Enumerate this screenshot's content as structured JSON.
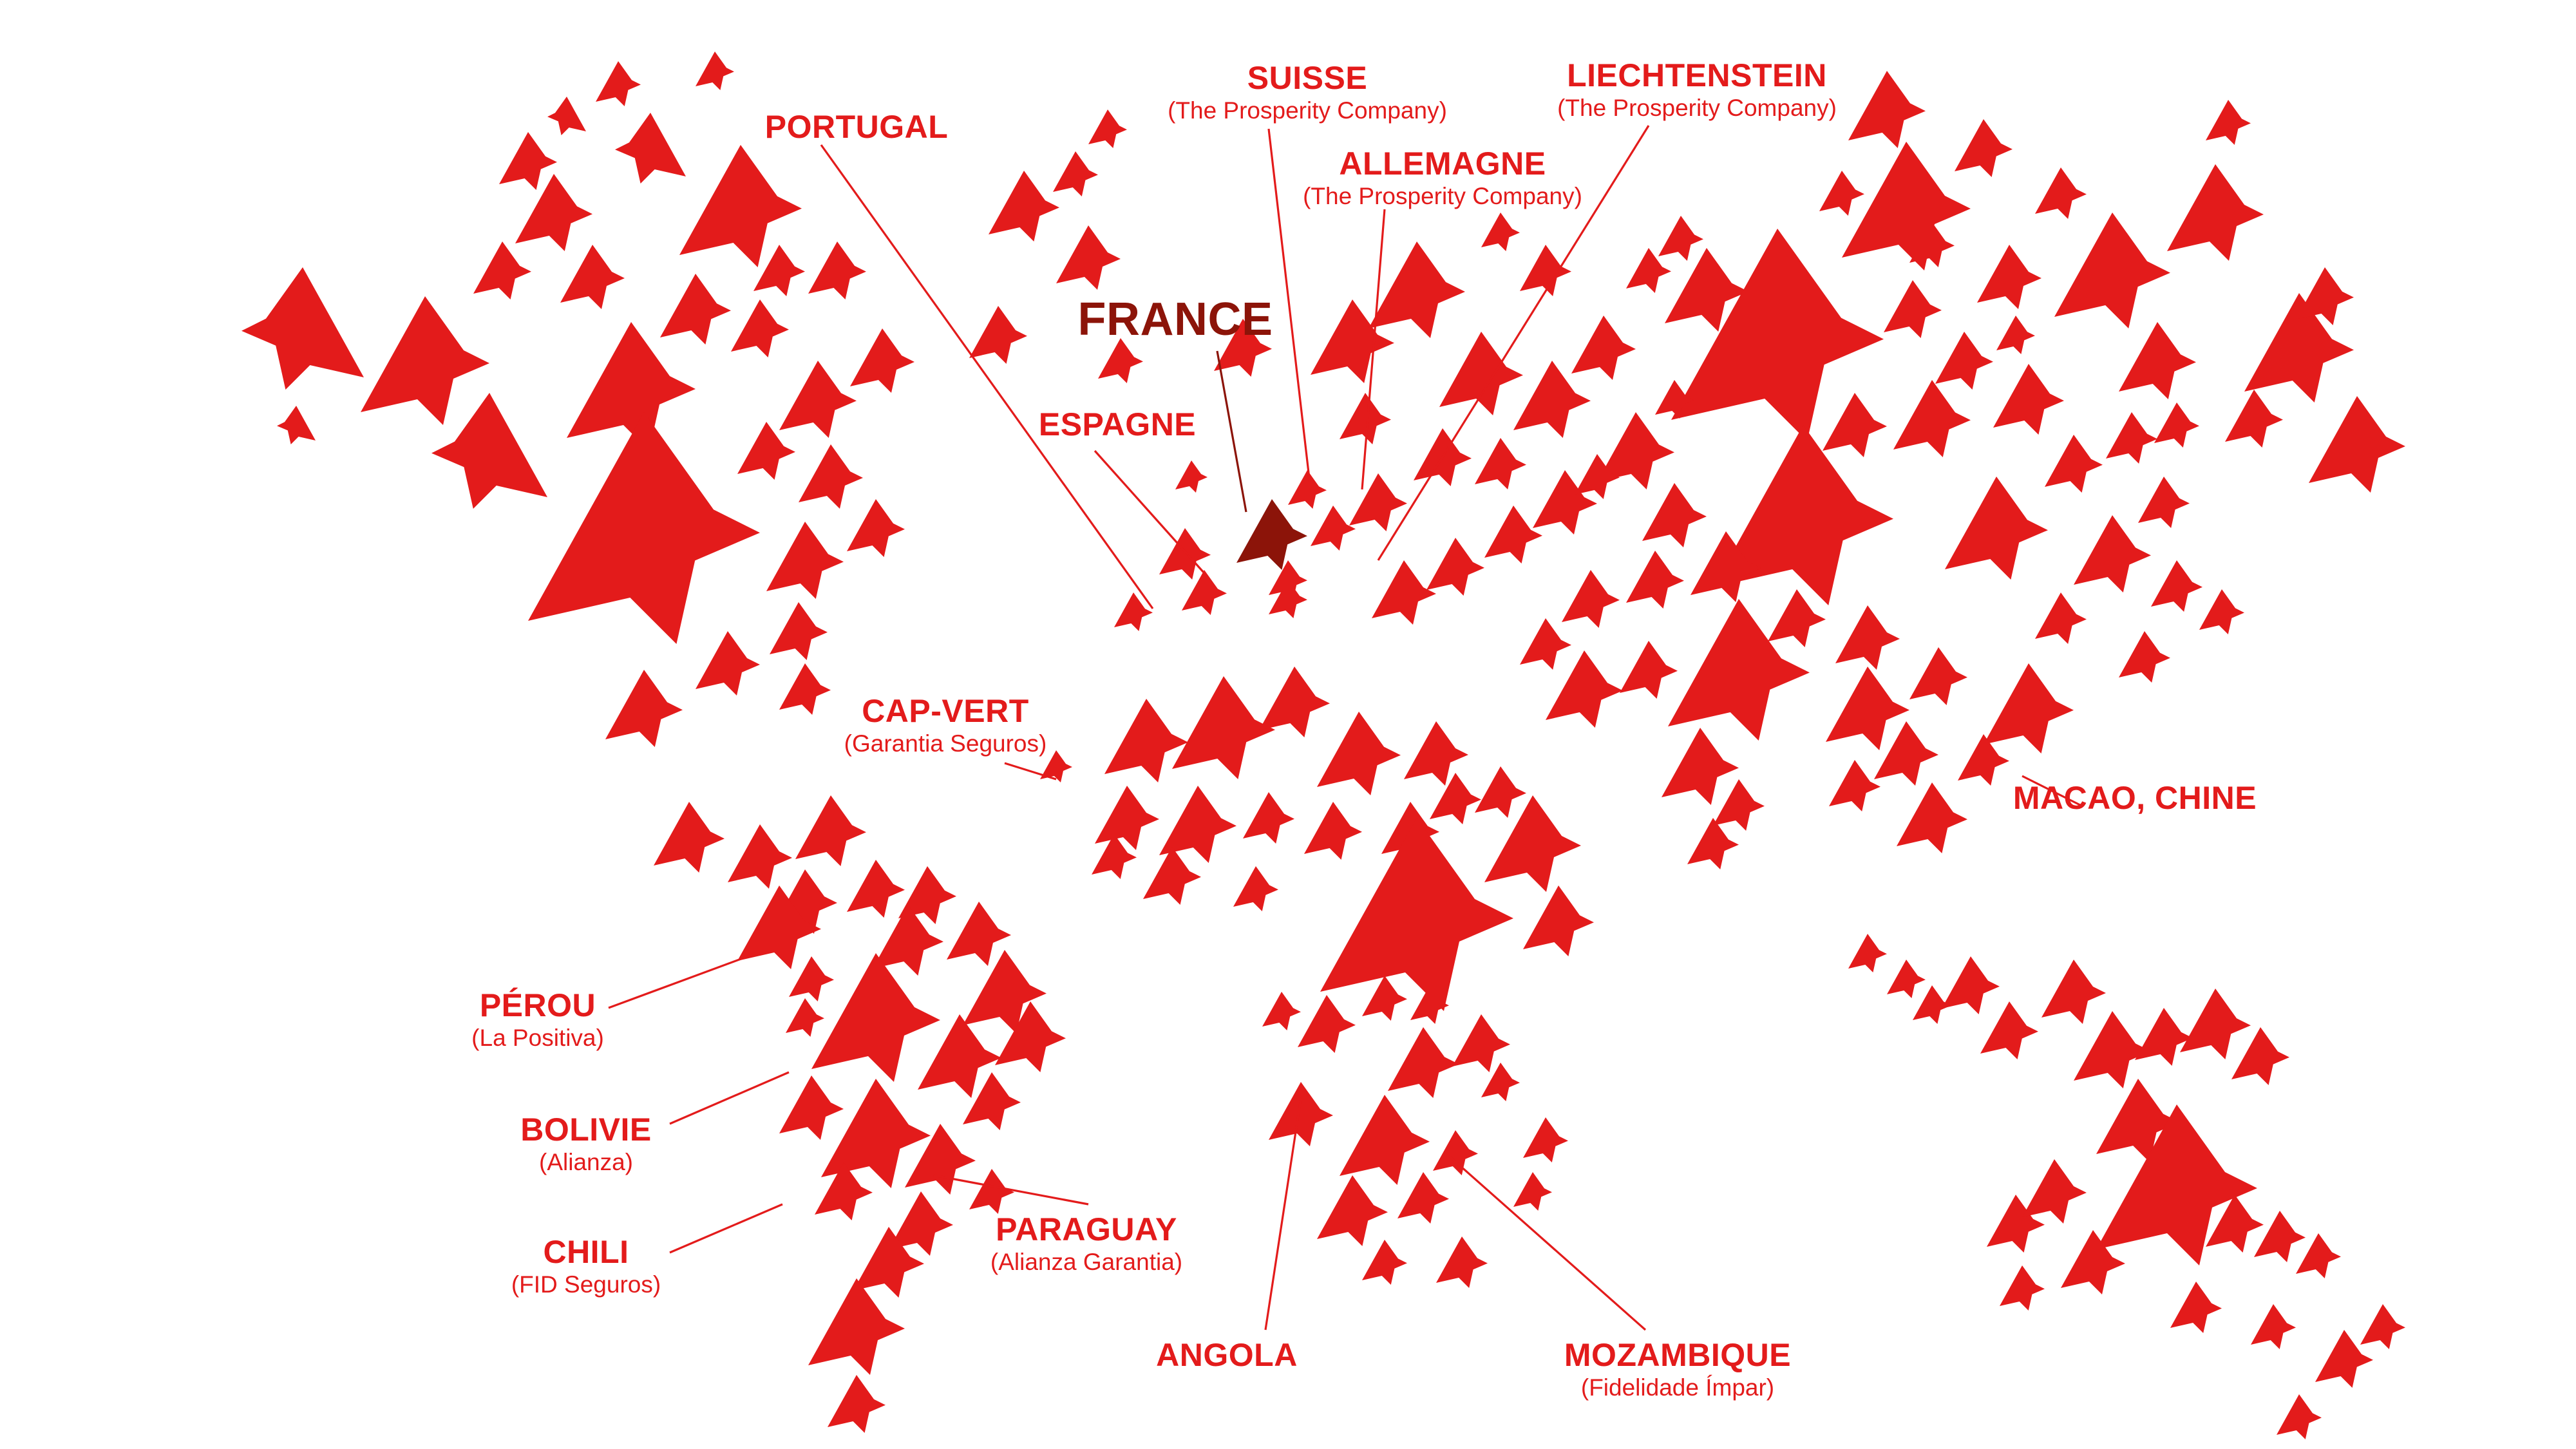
{
  "colors": {
    "accent": "#e31b1b",
    "home": "#8c1409",
    "background": "#ffffff"
  },
  "shape_icon": "origami-dog-head",
  "countries": {
    "portugal": {
      "name": "PORTUGAL",
      "partner": ""
    },
    "suisse": {
      "name": "SUISSE",
      "partner": "(The Prosperity Company)"
    },
    "liechtenstein": {
      "name": "LIECHTENSTEIN",
      "partner": "(The Prosperity Company)"
    },
    "allemagne": {
      "name": "ALLEMAGNE",
      "partner": "(The Prosperity Company)"
    },
    "france": {
      "name": "FRANCE",
      "partner": ""
    },
    "espagne": {
      "name": "ESPAGNE",
      "partner": ""
    },
    "cap_vert": {
      "name": "CAP-VERT",
      "partner": "(Garantia Seguros)"
    },
    "macao": {
      "name": "MACAO, CHINE",
      "partner": ""
    },
    "perou": {
      "name": "PÉROU",
      "partner": "(La Positiva)"
    },
    "bolivie": {
      "name": "BOLIVIE",
      "partner": "(Alianza)"
    },
    "chili": {
      "name": "CHILI",
      "partner": "(FID Seguros)"
    },
    "paraguay": {
      "name": "PARAGUAY",
      "partner": "(Alianza Garantia)"
    },
    "angola": {
      "name": "ANGOLA",
      "partner": ""
    },
    "mozambique": {
      "name": "MOZAMBIQUE",
      "partner": "(Fidelidade Ímpar)"
    }
  }
}
